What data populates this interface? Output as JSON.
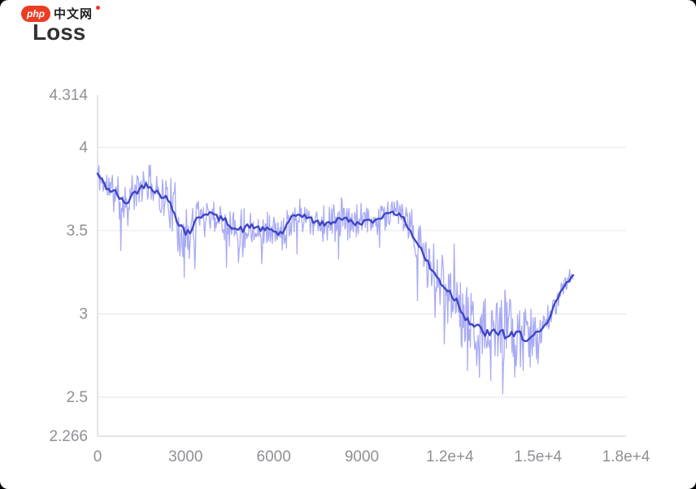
{
  "logo": {
    "brand": "php",
    "text": "中文网"
  },
  "title": "Loss",
  "chart_data": {
    "type": "line",
    "title": "Loss",
    "x_axis": {
      "min": 0,
      "max": 18000,
      "ticks": [
        0,
        3000,
        6000,
        9000,
        12000,
        15000,
        18000
      ],
      "tick_labels": [
        "0",
        "3000",
        "6000",
        "9000",
        "1.2e+4",
        "1.5e+4",
        "1.8e+4"
      ]
    },
    "y_axis": {
      "min": 2.266,
      "max": 4.314,
      "ticks": [
        4.314,
        4,
        3.5,
        3,
        2.5,
        2.266
      ],
      "tick_labels": [
        "4.314",
        "4",
        "3.5",
        "3",
        "2.5",
        "2.266"
      ],
      "gridlines": [
        4,
        3.5,
        3,
        2.5
      ]
    },
    "legend": "none",
    "grid_color": "#e6e6e6",
    "axis_color": "#c9c9c9",
    "tick_label_color": "#8f8f96",
    "series": [
      {
        "name": "raw",
        "color": "#a9abf4",
        "stroke_width": 1.3,
        "derived_from": "smoothed trend plus noise envelope",
        "noise_seed": 11,
        "noise_envelope": [
          [
            0,
            0.1
          ],
          [
            800,
            0.15
          ],
          [
            1500,
            0.12
          ],
          [
            2400,
            0.15
          ],
          [
            2800,
            0.22
          ],
          [
            3200,
            0.2
          ],
          [
            3600,
            0.13
          ],
          [
            4500,
            0.13
          ],
          [
            4800,
            0.17
          ],
          [
            5400,
            0.12
          ],
          [
            6300,
            0.12
          ],
          [
            7200,
            0.12
          ],
          [
            8400,
            0.13
          ],
          [
            9300,
            0.1
          ],
          [
            10200,
            0.1
          ],
          [
            10800,
            0.15
          ],
          [
            11400,
            0.2
          ],
          [
            12000,
            0.2
          ],
          [
            12600,
            0.22
          ],
          [
            13200,
            0.22
          ],
          [
            13800,
            0.28
          ],
          [
            14400,
            0.2
          ],
          [
            15000,
            0.16
          ],
          [
            15400,
            0.1
          ],
          [
            15800,
            0.07
          ],
          [
            16200,
            0.06
          ]
        ],
        "spike_points": [
          [
            800,
            3.38
          ],
          [
            2950,
            3.22
          ],
          [
            3300,
            3.27
          ],
          [
            4400,
            3.28
          ],
          [
            4800,
            3.31
          ],
          [
            5600,
            3.3
          ],
          [
            6800,
            3.36
          ],
          [
            8200,
            3.33
          ],
          [
            9600,
            3.4
          ],
          [
            10900,
            3.08
          ],
          [
            11500,
            2.98
          ],
          [
            11800,
            2.82
          ],
          [
            12150,
            3.42
          ],
          [
            12400,
            2.8
          ],
          [
            12600,
            2.66
          ],
          [
            13000,
            2.62
          ],
          [
            13400,
            2.6
          ],
          [
            13800,
            2.52
          ],
          [
            14200,
            2.62
          ],
          [
            14500,
            2.66
          ],
          [
            15000,
            2.7
          ]
        ]
      },
      {
        "name": "smoothed",
        "color": "#3f45c6",
        "stroke_width": 2.4,
        "x_start": 0,
        "x_step": 150,
        "x_end": 16200,
        "y": [
          3.84,
          3.8,
          3.76,
          3.74,
          3.73,
          3.7,
          3.66,
          3.68,
          3.72,
          3.74,
          3.76,
          3.78,
          3.77,
          3.74,
          3.72,
          3.71,
          3.68,
          3.63,
          3.58,
          3.53,
          3.49,
          3.5,
          3.54,
          3.58,
          3.6,
          3.61,
          3.6,
          3.58,
          3.57,
          3.56,
          3.54,
          3.52,
          3.5,
          3.51,
          3.52,
          3.53,
          3.52,
          3.51,
          3.5,
          3.51,
          3.5,
          3.48,
          3.49,
          3.53,
          3.57,
          3.59,
          3.6,
          3.59,
          3.57,
          3.56,
          3.55,
          3.54,
          3.54,
          3.55,
          3.56,
          3.58,
          3.57,
          3.56,
          3.55,
          3.54,
          3.55,
          3.56,
          3.55,
          3.56,
          3.58,
          3.59,
          3.61,
          3.62,
          3.6,
          3.58,
          3.55,
          3.5,
          3.45,
          3.41,
          3.36,
          3.3,
          3.26,
          3.22,
          3.19,
          3.16,
          3.13,
          3.1,
          3.06,
          3.01,
          2.97,
          2.94,
          2.92,
          2.9,
          2.89,
          2.87,
          2.88,
          2.9,
          2.88,
          2.87,
          2.86,
          2.87,
          2.88,
          2.86,
          2.85,
          2.86,
          2.88,
          2.9,
          2.94,
          3.0,
          3.07,
          3.12,
          3.17,
          3.2,
          3.24
        ]
      }
    ]
  }
}
